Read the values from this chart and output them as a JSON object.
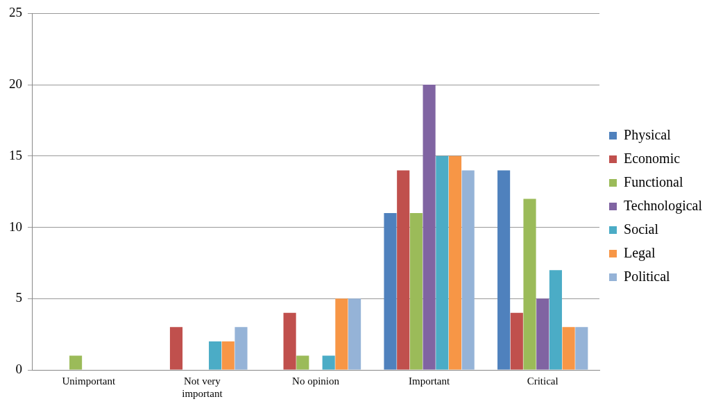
{
  "chart_data": {
    "type": "bar",
    "categories": [
      "Unimportant",
      "Not very important",
      "No opinion",
      "Important",
      "Critical"
    ],
    "series": [
      {
        "name": "Physical",
        "color": "#4f81bd",
        "values": [
          0,
          0,
          0,
          11,
          14
        ]
      },
      {
        "name": "Economic",
        "color": "#c0504d",
        "values": [
          0,
          3,
          4,
          14,
          4
        ]
      },
      {
        "name": "Functional",
        "color": "#9bbb59",
        "values": [
          1,
          0,
          1,
          11,
          12
        ]
      },
      {
        "name": "Technological",
        "color": "#8064a2",
        "values": [
          0,
          0,
          0,
          20,
          5
        ]
      },
      {
        "name": "Social",
        "color": "#4bacc6",
        "values": [
          0,
          2,
          1,
          15,
          7
        ]
      },
      {
        "name": "Legal",
        "color": "#f79646",
        "values": [
          0,
          2,
          5,
          15,
          3
        ]
      },
      {
        "name": "Political",
        "color": "#95b3d7",
        "values": [
          0,
          3,
          5,
          14,
          3
        ]
      }
    ],
    "ylim": [
      0,
      25
    ],
    "yticks": [
      0,
      5,
      10,
      15,
      20,
      25
    ],
    "grid": "y",
    "legend": "right"
  }
}
